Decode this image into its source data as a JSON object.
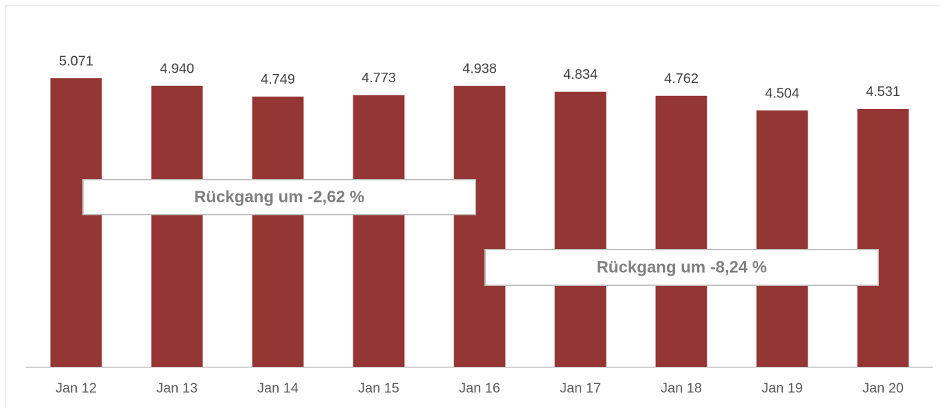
{
  "chart_data": {
    "type": "bar",
    "categories": [
      "Jan 12",
      "Jan 13",
      "Jan 14",
      "Jan 15",
      "Jan 16",
      "Jan 17",
      "Jan 18",
      "Jan 19",
      "Jan 20"
    ],
    "values": [
      5071,
      4940,
      4749,
      4773,
      4938,
      4834,
      4762,
      4504,
      4531
    ],
    "value_labels": [
      "5.071",
      "4.940",
      "4.749",
      "4.773",
      "4.938",
      "4.834",
      "4.762",
      "4.504",
      "4.531"
    ],
    "color": "#943634",
    "ylim": [
      0,
      6000
    ],
    "annotations": [
      {
        "text": "Rückgang um -2,62 %"
      },
      {
        "text": "Rückgang um -8,24 %"
      }
    ]
  }
}
